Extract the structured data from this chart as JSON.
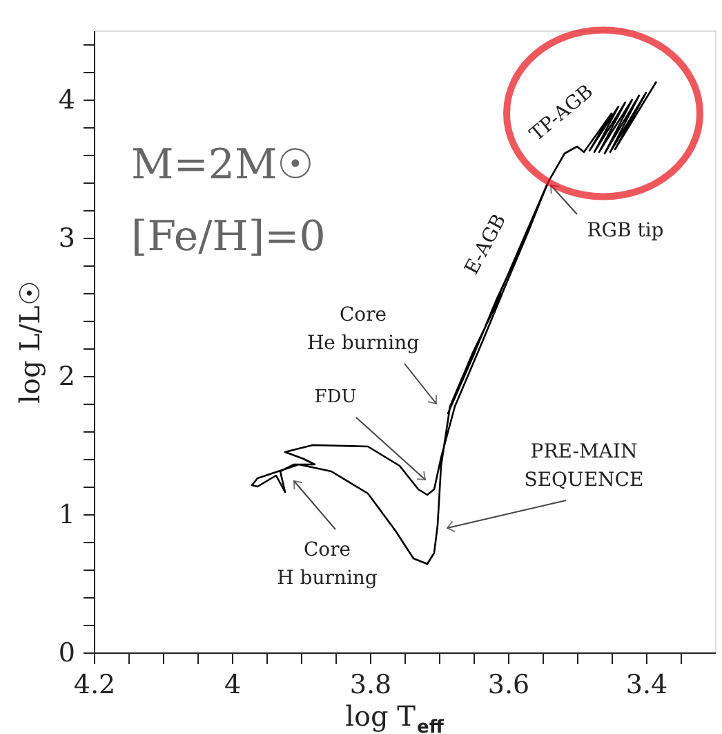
{
  "chart_data": {
    "type": "line",
    "xlabel": "log T$_{eff}$",
    "ylabel": "log L/L☉",
    "xlim": [
      4.2,
      3.3
    ],
    "ylim": [
      0,
      4.5
    ],
    "xticks": [
      4.2,
      {
        "value": 4.15,
        "label": null
      },
      {
        "value": 4.1,
        "label": null
      },
      {
        "value": 4.05,
        "label": null
      },
      4,
      {
        "value": 3.95,
        "label": null
      },
      {
        "value": 3.9,
        "label": null
      },
      {
        "value": 3.85,
        "label": null
      },
      3.8,
      {
        "value": 3.75,
        "label": null
      },
      {
        "value": 3.7,
        "label": null
      },
      {
        "value": 3.65,
        "label": null
      },
      3.6,
      {
        "value": 3.55,
        "label": null
      },
      {
        "value": 3.5,
        "label": null
      },
      {
        "value": 3.45,
        "label": null
      },
      3.4,
      {
        "value": 3.35,
        "label": null
      }
    ],
    "yticks": [
      0,
      {
        "value": 0.2,
        "label": null
      },
      {
        "value": 0.4,
        "label": null
      },
      {
        "value": 0.6,
        "label": null
      },
      {
        "value": 0.8,
        "label": null
      },
      1,
      {
        "value": 1.2,
        "label": null
      },
      {
        "value": 1.4,
        "label": null
      },
      {
        "value": 1.6,
        "label": null
      },
      {
        "value": 1.8,
        "label": null
      },
      2,
      {
        "value": 2.2,
        "label": null
      },
      {
        "value": 2.4,
        "label": null
      },
      {
        "value": 2.6,
        "label": null
      },
      {
        "value": 2.8,
        "label": null
      },
      3,
      {
        "value": 3.2,
        "label": null
      },
      {
        "value": 3.4,
        "label": null
      },
      {
        "value": 3.6,
        "label": null
      },
      {
        "value": 3.8,
        "label": null
      },
      4,
      {
        "value": 4.2,
        "label": null
      },
      {
        "value": 4.4,
        "label": null
      }
    ],
    "grid": false,
    "legend": false,
    "marker": "none",
    "line_style": "solid",
    "series": [
      {
        "color": "#000000",
        "x": [
          3.609,
          3.65,
          3.684,
          3.697,
          3.702,
          3.707,
          3.717,
          3.737,
          3.763,
          3.803,
          3.856,
          3.903,
          3.963,
          3.971,
          3.963,
          3.936,
          3.923,
          3.93,
          3.91,
          3.88,
          3.896,
          3.923,
          3.883,
          3.803,
          3.757,
          3.73,
          3.717,
          3.707,
          3.697,
          3.677,
          3.637,
          3.604,
          3.571,
          3.544,
          3.687,
          3.65,
          3.617,
          3.577,
          3.541,
          3.518,
          3.5,
          3.49,
          3.45,
          3.482,
          3.44,
          3.475,
          3.43,
          3.468,
          3.42,
          3.46,
          3.41,
          3.452,
          3.4,
          3.445,
          3.385
        ],
        "values": [
          2.6,
          2.18,
          1.78,
          1.35,
          0.92,
          0.72,
          0.64,
          0.68,
          0.88,
          1.15,
          1.31,
          1.36,
          1.26,
          1.21,
          1.2,
          1.28,
          1.16,
          1.31,
          1.36,
          1.36,
          1.4,
          1.45,
          1.5,
          1.49,
          1.35,
          1.18,
          1.14,
          1.18,
          1.41,
          1.78,
          2.25,
          2.65,
          3.04,
          3.38,
          1.73,
          2.15,
          2.55,
          2.98,
          3.41,
          3.61,
          3.66,
          3.62,
          3.9,
          3.63,
          3.95,
          3.62,
          3.98,
          3.62,
          4.0,
          3.61,
          4.03,
          3.62,
          4.05,
          3.64,
          4.13
        ]
      }
    ],
    "annotations": [
      "M=2M☉",
      "[Fe/H]=0",
      "Core\nHe burning",
      "FDU",
      "PRE-MAIN\nSEQUENCE",
      "Core\nH burning",
      {
        "text": "RGB tip",
        "x": 3.538,
        "y": 3.38
      },
      "E-AGB",
      "TP-AGB"
    ]
  }
}
